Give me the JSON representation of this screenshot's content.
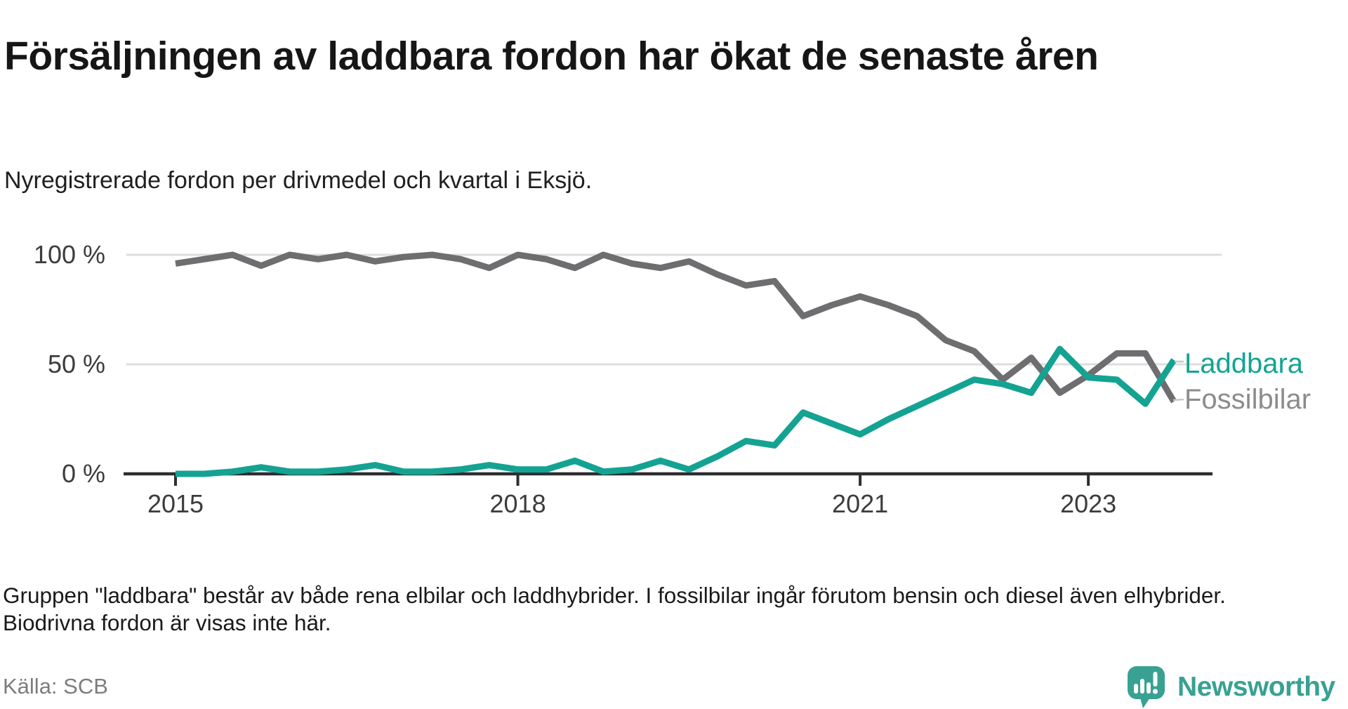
{
  "title": "Försäljningen av laddbara fordon har ökat de senaste åren",
  "subtitle": "Nyregistrerade fordon per drivmedel och kvartal i Eksjö.",
  "footnote": "Gruppen \"laddbara\" består av både rena elbilar och laddhybrider. I fossilbilar ingår förutom bensin och diesel även elhybrider. Biodrivna fordon är visas inte här.",
  "source": "Källa: SCB",
  "branding": {
    "name": "Newsworthy",
    "icon": "newsworthy-speech-bubble-chart-icon",
    "color": "#38a192"
  },
  "chart_data": {
    "type": "line",
    "unit": "%",
    "x": [
      "2015 Q1",
      "2015 Q2",
      "2015 Q3",
      "2015 Q4",
      "2016 Q1",
      "2016 Q2",
      "2016 Q3",
      "2016 Q4",
      "2017 Q1",
      "2017 Q2",
      "2017 Q3",
      "2017 Q4",
      "2018 Q1",
      "2018 Q2",
      "2018 Q3",
      "2018 Q4",
      "2019 Q1",
      "2019 Q2",
      "2019 Q3",
      "2019 Q4",
      "2020 Q1",
      "2020 Q2",
      "2020 Q3",
      "2020 Q4",
      "2021 Q1",
      "2021 Q2",
      "2021 Q3",
      "2021 Q4",
      "2022 Q1",
      "2022 Q2",
      "2022 Q3",
      "2022 Q4",
      "2023 Q1",
      "2023 Q2",
      "2023 Q3",
      "2023 Q4"
    ],
    "series": [
      {
        "name": "Fossilbilar",
        "color": "#6e6e71",
        "values": [
          96,
          98,
          100,
          95,
          100,
          98,
          100,
          97,
          99,
          100,
          98,
          94,
          100,
          98,
          94,
          100,
          96,
          94,
          97,
          91,
          86,
          88,
          72,
          77,
          81,
          77,
          72,
          61,
          56,
          43,
          53,
          37,
          45,
          55,
          55,
          33
        ]
      },
      {
        "name": "Laddbara",
        "color": "#14a392",
        "values": [
          0,
          0,
          1,
          3,
          1,
          1,
          2,
          4,
          1,
          1,
          2,
          4,
          2,
          2,
          6,
          1,
          2,
          6,
          2,
          8,
          15,
          13,
          28,
          23,
          18,
          25,
          31,
          37,
          43,
          41,
          37,
          57,
          44,
          43,
          32,
          52
        ]
      }
    ],
    "y_axis": {
      "min": 0,
      "max": 100,
      "ticks": [
        {
          "value": 0,
          "label": "0 %"
        },
        {
          "value": 50,
          "label": "50 %"
        },
        {
          "value": 100,
          "label": "100 %"
        }
      ],
      "gridlines_at": [
        50,
        100
      ]
    },
    "x_axis": {
      "ticks": [
        {
          "label": "2015",
          "quarter_index": 0
        },
        {
          "label": "2018",
          "quarter_index": 12
        },
        {
          "label": "2021",
          "quarter_index": 24
        },
        {
          "label": "2023",
          "quarter_index": 32
        }
      ]
    },
    "legend": [
      {
        "label": "Laddbara",
        "text_color": "#14a392"
      },
      {
        "label": "Fossilbilar",
        "text_color": "#8c8c8f"
      }
    ]
  }
}
